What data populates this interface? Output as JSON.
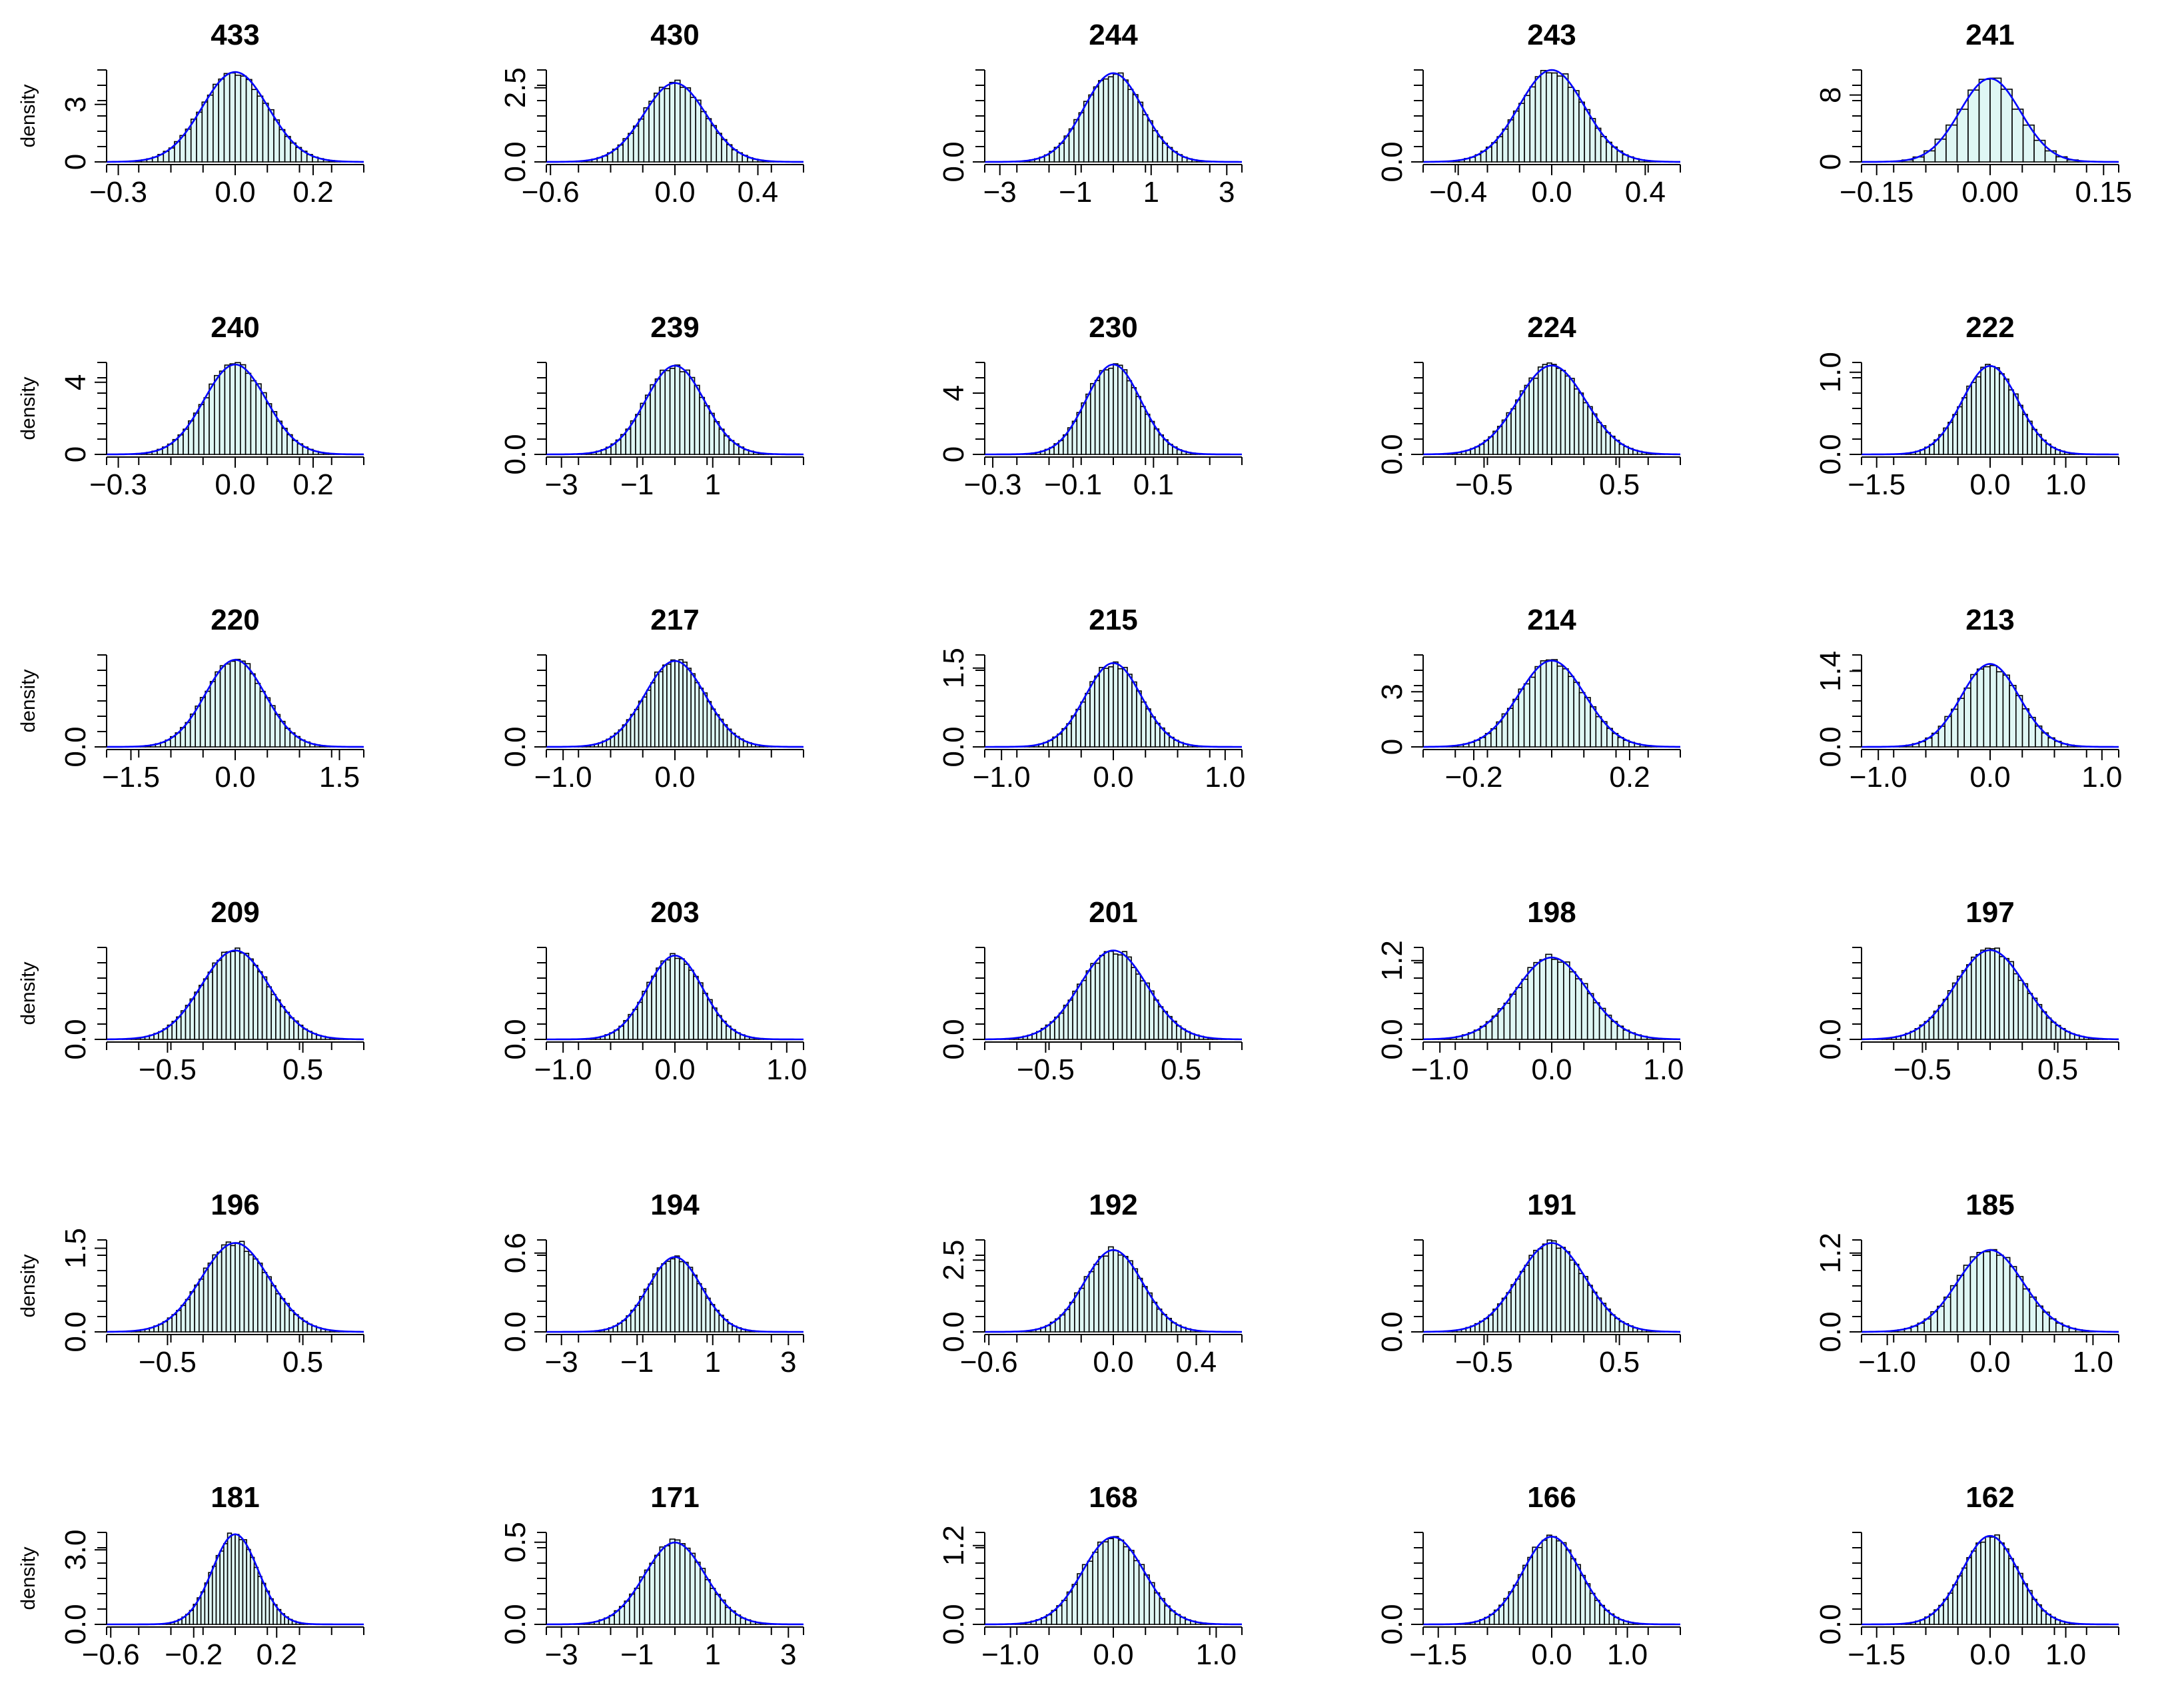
{
  "figure": {
    "ylabel": "density",
    "bar_fill": "#dff7f4",
    "bar_stroke": "#000000",
    "curve_color": "#0000ff"
  },
  "chart_data": [
    {
      "type": "bar",
      "title": "433",
      "xlim": [
        -0.33,
        0.33
      ],
      "xticks": [
        -0.3,
        0.0,
        0.2
      ],
      "xticklabels": [
        "-0.3",
        "0.0",
        "0.2"
      ],
      "ylim": [
        0,
        4.8
      ],
      "yticks": [
        0,
        3
      ],
      "yticklabels": [
        "0",
        "3"
      ],
      "mu": 0.0,
      "sigma": 0.085,
      "bins": 48,
      "ylabel": "density"
    },
    {
      "type": "bar",
      "title": "430",
      "xlim": [
        -0.62,
        0.62
      ],
      "xticks": [
        -0.6,
        0.0,
        0.4
      ],
      "xticklabels": [
        "-0.6",
        "0.0",
        "0.4"
      ],
      "ylim": [
        0,
        3.1
      ],
      "yticks": [
        0,
        2.5
      ],
      "yticklabels": [
        "0.0",
        "2.5"
      ],
      "mu": 0.0,
      "sigma": 0.15,
      "bins": 48
    },
    {
      "type": "bar",
      "title": "244",
      "xlim": [
        -3.4,
        3.4
      ],
      "xticks": [
        -3,
        -1,
        1,
        3
      ],
      "xticklabels": [
        "-3",
        "-1",
        "1",
        "3"
      ],
      "ylim": [
        0,
        0.53
      ],
      "yticks": [
        0
      ],
      "yticklabels": [
        "0.0"
      ],
      "mu": 0.0,
      "sigma": 0.78,
      "bins": 48
    },
    {
      "type": "bar",
      "title": "243",
      "xlim": [
        -0.55,
        0.55
      ],
      "xticks": [
        -0.4,
        0.0,
        0.4
      ],
      "xticklabels": [
        "-0.4",
        "0.0",
        "0.4"
      ],
      "ylim": [
        0,
        2.85
      ],
      "yticks": [
        0
      ],
      "yticklabels": [
        "0.0"
      ],
      "mu": 0.0,
      "sigma": 0.14,
      "bins": 48
    },
    {
      "type": "bar",
      "title": "241",
      "xlim": [
        -0.17,
        0.17
      ],
      "xticks": [
        -0.15,
        0.0,
        0.15
      ],
      "xticklabels": [
        "-0.15",
        "0.00",
        "0.15"
      ],
      "ylim": [
        0,
        11.0
      ],
      "yticks": [
        0,
        8
      ],
      "yticklabels": [
        "0",
        "8"
      ],
      "mu": 0.0,
      "sigma": 0.04,
      "bins": 22
    },
    {
      "type": "bar",
      "title": "240",
      "xlim": [
        -0.33,
        0.33
      ],
      "xticks": [
        -0.3,
        0.0,
        0.2
      ],
      "xticklabels": [
        "-0.3",
        "0.0",
        "0.2"
      ],
      "ylim": [
        0,
        5.1
      ],
      "yticks": [
        0,
        4
      ],
      "yticklabels": [
        "0",
        "4"
      ],
      "mu": 0.0,
      "sigma": 0.08,
      "bins": 48
    },
    {
      "type": "bar",
      "title": "239",
      "xlim": [
        -3.4,
        3.4
      ],
      "xticks": [
        -3,
        -1,
        1
      ],
      "xticklabels": [
        "-3",
        "-1",
        "1"
      ],
      "ylim": [
        0,
        0.53
      ],
      "yticks": [
        0
      ],
      "yticklabels": [
        "0.0"
      ],
      "mu": 0.0,
      "sigma": 0.78,
      "bins": 48
    },
    {
      "type": "bar",
      "title": "230",
      "xlim": [
        -0.32,
        0.32
      ],
      "xticks": [
        -0.3,
        -0.1,
        0.1
      ],
      "xticklabels": [
        "-0.3",
        "-0.1",
        "0.1"
      ],
      "ylim": [
        0,
        6.0
      ],
      "yticks": [
        0,
        4
      ],
      "yticklabels": [
        "0",
        "4"
      ],
      "mu": 0.0,
      "sigma": 0.068,
      "bins": 48
    },
    {
      "type": "bar",
      "title": "224",
      "xlim": [
        -0.95,
        0.95
      ],
      "xticks": [
        -0.5,
        0.5
      ],
      "xticklabels": [
        "-0.5",
        "0.5"
      ],
      "ylim": [
        0,
        1.65
      ],
      "yticks": [
        0
      ],
      "yticklabels": [
        "0.0"
      ],
      "mu": 0.0,
      "sigma": 0.25,
      "bins": 60
    },
    {
      "type": "bar",
      "title": "222",
      "xlim": [
        -1.7,
        1.7
      ],
      "xticks": [
        -1.5,
        0.0,
        1.0
      ],
      "xticklabels": [
        "-1.5",
        "0.0",
        "1.0"
      ],
      "ylim": [
        0,
        1.12
      ],
      "yticks": [
        0,
        1
      ],
      "yticklabels": [
        "0.0",
        "1.0"
      ],
      "mu": 0.0,
      "sigma": 0.37,
      "bins": 48
    },
    {
      "type": "bar",
      "title": "220",
      "xlim": [
        -1.85,
        1.85
      ],
      "xticks": [
        -1.5,
        0.0,
        1.5
      ],
      "xticklabels": [
        "-1.5",
        "0.0",
        "1.5"
      ],
      "ylim": [
        0,
        0.98
      ],
      "yticks": [
        0
      ],
      "yticklabels": [
        "0.0"
      ],
      "mu": 0.0,
      "sigma": 0.43,
      "bins": 48
    },
    {
      "type": "bar",
      "title": "217",
      "xlim": [
        -1.15,
        1.15
      ],
      "xticks": [
        -1.0,
        0.0
      ],
      "xticklabels": [
        "-1.0",
        "0.0"
      ],
      "ylim": [
        0,
        1.58
      ],
      "yticks": [
        0
      ],
      "yticklabels": [
        "0.0"
      ],
      "mu": 0.0,
      "sigma": 0.27,
      "bins": 60
    },
    {
      "type": "bar",
      "title": "215",
      "xlim": [
        -1.15,
        1.15
      ],
      "xticks": [
        -1.0,
        0.0,
        1.0
      ],
      "xticklabels": [
        "-1.0",
        "0.0",
        "1.0"
      ],
      "ylim": [
        0,
        1.75
      ],
      "yticks": [
        0,
        1.5
      ],
      "yticklabels": [
        "0.0",
        "1.5"
      ],
      "mu": 0.0,
      "sigma": 0.25,
      "bins": 48
    },
    {
      "type": "bar",
      "title": "214",
      "xlim": [
        -0.33,
        0.33
      ],
      "xticks": [
        -0.2,
        0.2
      ],
      "xticklabels": [
        "-0.2",
        "0.2"
      ],
      "ylim": [
        0,
        5.0
      ],
      "yticks": [
        0,
        3
      ],
      "yticklabels": [
        "0",
        "3"
      ],
      "mu": 0.0,
      "sigma": 0.085,
      "bins": 48
    },
    {
      "type": "bar",
      "title": "213",
      "xlim": [
        -1.15,
        1.15
      ],
      "xticks": [
        -1.0,
        0.0,
        1.0
      ],
      "xticklabels": [
        "-1.0",
        "0.0",
        "1.0"
      ],
      "ylim": [
        0,
        1.7
      ],
      "yticks": [
        0,
        1.4
      ],
      "yticklabels": [
        "0.0",
        "1.4"
      ],
      "mu": 0.0,
      "sigma": 0.26,
      "bins": 36
    },
    {
      "type": "bar",
      "title": "209",
      "xlim": [
        -0.95,
        0.95
      ],
      "xticks": [
        -0.5,
        0.5
      ],
      "xticklabels": [
        "-0.5",
        "0.5"
      ],
      "ylim": [
        0,
        1.65
      ],
      "yticks": [
        0
      ],
      "yticklabels": [
        "0.0"
      ],
      "mu": 0.0,
      "sigma": 0.25,
      "bins": 60
    },
    {
      "type": "bar",
      "title": "203",
      "xlim": [
        -1.15,
        1.15
      ],
      "xticks": [
        -1.0,
        0.0,
        1.0
      ],
      "xticklabels": [
        "-1.0",
        "0.0",
        "1.0"
      ],
      "ylim": [
        0,
        1.75
      ],
      "yticks": [
        0
      ],
      "yticklabels": [
        "0.0"
      ],
      "mu": 0.0,
      "sigma": 0.25,
      "bins": 48
    },
    {
      "type": "bar",
      "title": "201",
      "xlim": [
        -0.95,
        0.95
      ],
      "xticks": [
        -0.5,
        0.5
      ],
      "xticklabels": [
        "-0.5",
        "0.5"
      ],
      "ylim": [
        0,
        1.65
      ],
      "yticks": [
        0
      ],
      "yticklabels": [
        "0.0"
      ],
      "mu": 0.0,
      "sigma": 0.25,
      "bins": 60
    },
    {
      "type": "bar",
      "title": "198",
      "xlim": [
        -1.15,
        1.15
      ],
      "xticks": [
        -1.0,
        0.0,
        1.0
      ],
      "xticklabels": [
        "-1.0",
        "0.0",
        "1.0"
      ],
      "ylim": [
        0,
        1.4
      ],
      "yticks": [
        0,
        1.2
      ],
      "yticklabels": [
        "0.0",
        "1.2"
      ],
      "mu": 0.0,
      "sigma": 0.32,
      "bins": 48
    },
    {
      "type": "bar",
      "title": "197",
      "xlim": [
        -0.95,
        0.95
      ],
      "xticks": [
        -0.5,
        0.5
      ],
      "xticklabels": [
        "-0.5",
        "0.5"
      ],
      "ylim": [
        0,
        1.58
      ],
      "yticks": [
        0
      ],
      "yticklabels": [
        "0.0"
      ],
      "mu": 0.0,
      "sigma": 0.26,
      "bins": 60
    },
    {
      "type": "bar",
      "title": "196",
      "xlim": [
        -0.95,
        0.95
      ],
      "xticks": [
        -0.5,
        0.5
      ],
      "xticklabels": [
        "-0.5",
        "0.5"
      ],
      "ylim": [
        0,
        1.65
      ],
      "yticks": [
        0,
        1.5
      ],
      "yticklabels": [
        "0.0",
        "1.5"
      ],
      "mu": 0.0,
      "sigma": 0.25,
      "bins": 60
    },
    {
      "type": "bar",
      "title": "194",
      "xlim": [
        -3.4,
        3.4
      ],
      "xticks": [
        -3,
        -1,
        1,
        3
      ],
      "xticklabels": [
        "-3",
        "-1",
        "1",
        "3"
      ],
      "ylim": [
        0,
        0.7
      ],
      "yticks": [
        0,
        0.6
      ],
      "yticklabels": [
        "0.0",
        "0.6"
      ],
      "mu": 0.0,
      "sigma": 0.7,
      "bins": 48
    },
    {
      "type": "bar",
      "title": "192",
      "xlim": [
        -0.62,
        0.62
      ],
      "xticks": [
        -0.6,
        0.0,
        0.4
      ],
      "xticklabels": [
        "-0.6",
        "0.0",
        "0.4"
      ],
      "ylim": [
        0,
        3.2
      ],
      "yticks": [
        0,
        2.5
      ],
      "yticklabels": [
        "0.0",
        "2.5"
      ],
      "mu": 0.0,
      "sigma": 0.14,
      "bins": 48
    },
    {
      "type": "bar",
      "title": "191",
      "xlim": [
        -0.95,
        0.95
      ],
      "xticks": [
        -0.5,
        0.5
      ],
      "xticklabels": [
        "-0.5",
        "0.5"
      ],
      "ylim": [
        0,
        1.65
      ],
      "yticks": [
        0
      ],
      "yticklabels": [
        "0.0"
      ],
      "mu": 0.0,
      "sigma": 0.25,
      "bins": 60
    },
    {
      "type": "bar",
      "title": "185",
      "xlim": [
        -1.25,
        1.25
      ],
      "xticks": [
        -1.0,
        0.0,
        1.0
      ],
      "xticklabels": [
        "-1.0",
        "0.0",
        "1.0"
      ],
      "ylim": [
        0,
        1.4
      ],
      "yticks": [
        0,
        1.2
      ],
      "yticklabels": [
        "0.0",
        "1.2"
      ],
      "mu": 0.0,
      "sigma": 0.32,
      "bins": 40
    },
    {
      "type": "bar",
      "title": "181",
      "xlim": [
        -0.62,
        0.62
      ],
      "xticks": [
        -0.6,
        -0.2,
        0.2
      ],
      "xticklabels": [
        "-0.6",
        "-0.2",
        "0.2"
      ],
      "ylim": [
        0,
        3.7
      ],
      "yticks": [
        0,
        3
      ],
      "yticklabels": [
        "0.0",
        "3.0"
      ],
      "mu": 0.0,
      "sigma": 0.11,
      "bins": 48
    },
    {
      "type": "bar",
      "title": "171",
      "xlim": [
        -3.4,
        3.4
      ],
      "xticks": [
        -3,
        -1,
        1,
        3
      ],
      "xticklabels": [
        "-3",
        "-1",
        "1",
        "3"
      ],
      "ylim": [
        0,
        0.56
      ],
      "yticks": [
        0,
        0.5
      ],
      "yticklabels": [
        "0.0",
        "0.5"
      ],
      "mu": 0.0,
      "sigma": 0.8,
      "bins": 48
    },
    {
      "type": "bar",
      "title": "168",
      "xlim": [
        -1.25,
        1.25
      ],
      "xticks": [
        -1.0,
        0.0,
        1.0
      ],
      "xticklabels": [
        "-1.0",
        "0.0",
        "1.0"
      ],
      "ylim": [
        0,
        1.4
      ],
      "yticks": [
        0,
        1.2
      ],
      "yticklabels": [
        "0.0",
        "1.2"
      ],
      "mu": 0.0,
      "sigma": 0.3,
      "bins": 48
    },
    {
      "type": "bar",
      "title": "166",
      "xlim": [
        -1.7,
        1.7
      ],
      "xticks": [
        -1.5,
        0.0,
        1.0
      ],
      "xticklabels": [
        "-1.5",
        "0.0",
        "1.0"
      ],
      "ylim": [
        0,
        1.1
      ],
      "yticks": [
        0
      ],
      "yticklabels": [
        "0.0"
      ],
      "mu": 0.0,
      "sigma": 0.38,
      "bins": 48
    },
    {
      "type": "bar",
      "title": "162",
      "xlim": [
        -1.7,
        1.7
      ],
      "xticks": [
        -1.5,
        0.0,
        1.0
      ],
      "xticklabels": [
        "-1.5",
        "0.0",
        "1.0"
      ],
      "ylim": [
        0,
        1.12
      ],
      "yticks": [
        0
      ],
      "yticklabels": [
        "0.0"
      ],
      "mu": 0.0,
      "sigma": 0.37,
      "bins": 48
    }
  ]
}
